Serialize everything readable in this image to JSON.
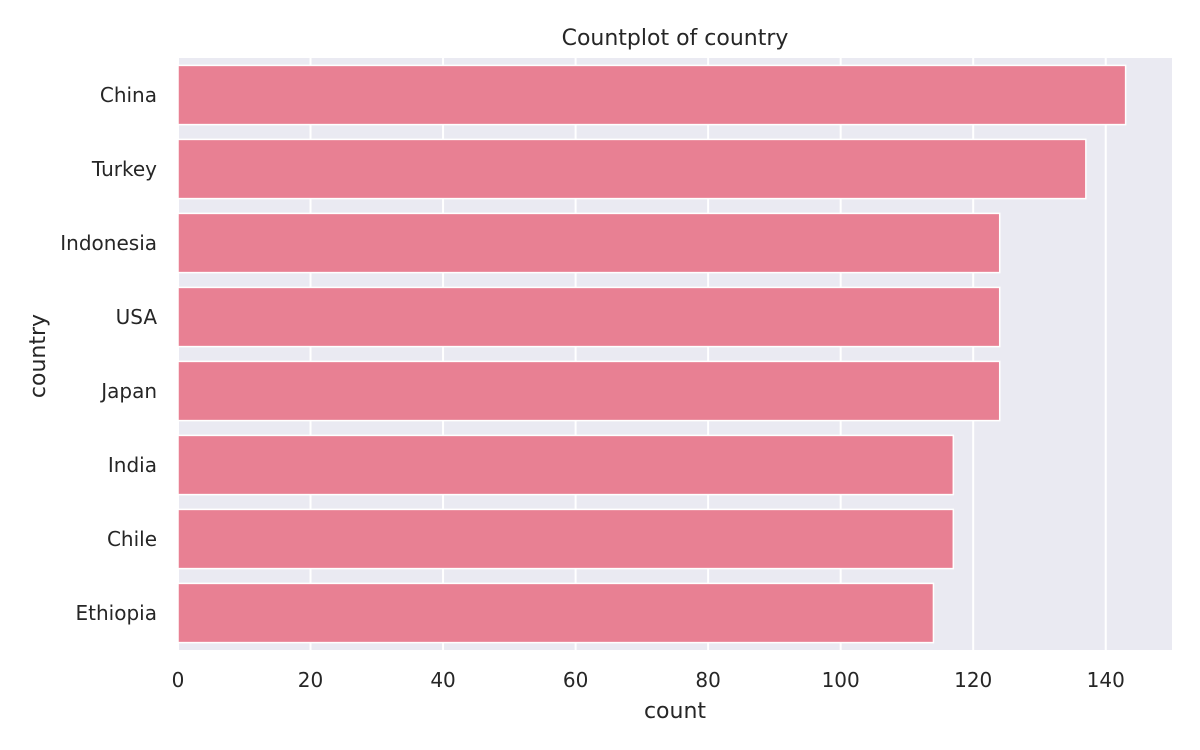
{
  "chart_data": {
    "type": "bar",
    "orientation": "horizontal",
    "title": "Countplot of country",
    "xlabel": "count",
    "ylabel": "country",
    "categories": [
      "China",
      "Turkey",
      "Indonesia",
      "USA",
      "Japan",
      "India",
      "Chile",
      "Ethiopia"
    ],
    "values": [
      143,
      137,
      124,
      124,
      124,
      117,
      117,
      114
    ],
    "xlim": [
      0,
      150
    ],
    "xticks": [
      0,
      20,
      40,
      60,
      80,
      100,
      120,
      140
    ],
    "grid": true,
    "colors": {
      "bar": "#e88093",
      "background": "#eaeaf2",
      "grid": "#ffffff",
      "text": "#262626"
    }
  }
}
